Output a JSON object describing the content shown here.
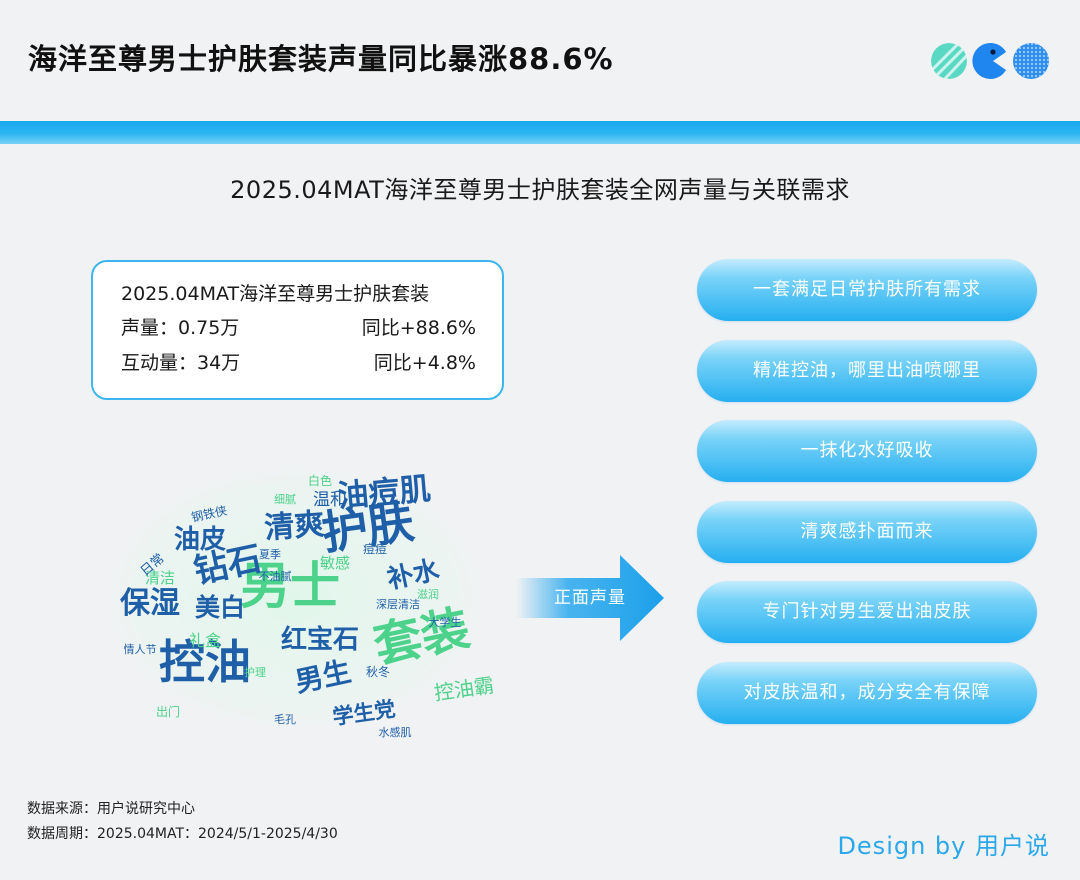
{
  "header": {
    "title": "海洋至尊男士护肤套装声量同比暴涨88.6%"
  },
  "section": {
    "title": "2025.04MAT海洋至尊男士护肤套装全网声量与关联需求"
  },
  "stats": {
    "title": "2025.04MAT海洋至尊男士护肤套装",
    "rows": [
      {
        "label": "声量：0.75万",
        "change": "同比+88.6%"
      },
      {
        "label": "互动量：34万",
        "change": "同比+4.8%"
      }
    ]
  },
  "wordcloud": {
    "words": [
      "护肤",
      "男士",
      "套装",
      "控油",
      "钻石",
      "油痘肌",
      "清爽",
      "保湿",
      "美白",
      "补水",
      "红宝石",
      "男生",
      "油皮",
      "学生党",
      "温和",
      "白色",
      "钢铁侠",
      "日常",
      "敏感",
      "清洁",
      "礼盒",
      "秋冬",
      "深层清洁",
      "水感肌",
      "痘痘",
      "夏季",
      "情人节",
      "出门",
      "细腻",
      "大学生",
      "护理",
      "毛孔",
      "不油腻",
      "滋润",
      "控油霸"
    ]
  },
  "arrow": {
    "label": "正面声量"
  },
  "needs": [
    "一套满足日常护肤所有需求",
    "精准控油，哪里出油喷哪里",
    "一抹化水好吸收",
    "清爽感扑面而来",
    "专门针对男生爱出油皮肤",
    "对皮肤温和，成分安全有保障"
  ],
  "footer": {
    "source": "数据来源：用户说研究中心",
    "period": "数据周期：2025.04MAT：2024/5/1-2025/4/30"
  },
  "credit": "Design by 用户说",
  "colors": {
    "accent": "#1aa8ee",
    "pill": "#25aff0",
    "cloud_blue": "#1f5fa8",
    "cloud_green": "#4cd28a"
  }
}
